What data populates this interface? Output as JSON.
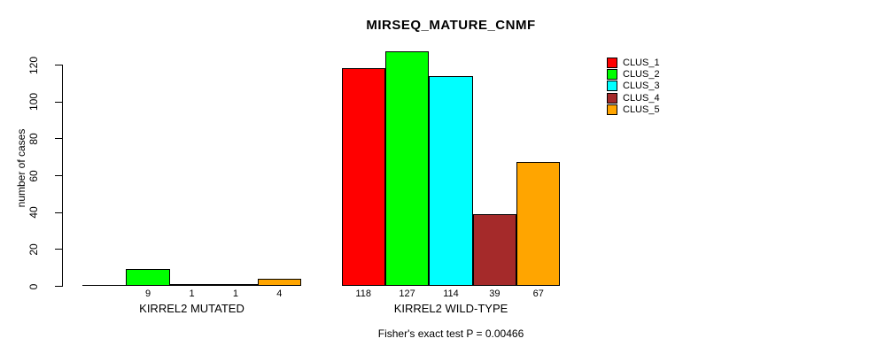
{
  "title": "MIRSEQ_MATURE_CNMF",
  "caption": "Fisher's exact test P = 0.00466",
  "chart_data": {
    "type": "bar",
    "title": "MIRSEQ_MATURE_CNMF",
    "xlabel": "",
    "ylabel": "number of cases",
    "yticks": [
      0,
      20,
      40,
      60,
      80,
      100,
      120
    ],
    "ylim": [
      0,
      127
    ],
    "grid": false,
    "legend_position": "top-right",
    "categories": [
      "KIRREL2 MUTATED",
      "KIRREL2 WILD-TYPE"
    ],
    "series": [
      {
        "name": "CLUS_1",
        "color": "#FF0000",
        "values": [
          0,
          118
        ]
      },
      {
        "name": "CLUS_2",
        "color": "#00FF00",
        "values": [
          9,
          127
        ]
      },
      {
        "name": "CLUS_3",
        "color": "#00FFFF",
        "values": [
          1,
          114
        ]
      },
      {
        "name": "CLUS_4",
        "color": "#A52A2A",
        "values": [
          1,
          39
        ]
      },
      {
        "name": "CLUS_5",
        "color": "#FFA500",
        "values": [
          4,
          67
        ]
      }
    ],
    "bar_labels": [
      [
        "",
        "9",
        "1",
        "1",
        "4"
      ],
      [
        "118",
        "127",
        "114",
        "39",
        "67"
      ]
    ],
    "annotation": "Fisher's exact test P = 0.00466"
  }
}
